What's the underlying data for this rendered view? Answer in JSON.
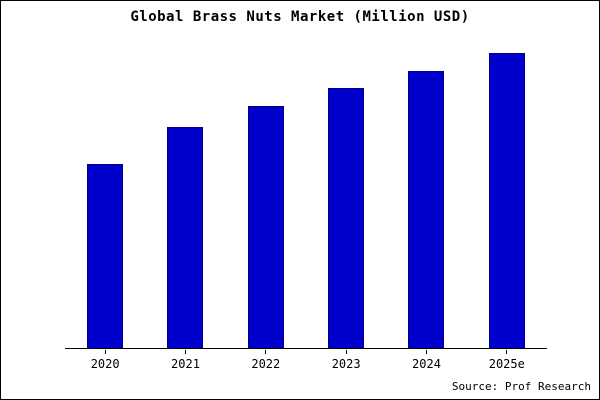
{
  "title": "Global Brass Nuts Market (Million USD)",
  "source": "Source: Prof Research",
  "chart_data": {
    "type": "bar",
    "title": "Global Brass Nuts Market (Million USD)",
    "categories": [
      "2020",
      "2021",
      "2022",
      "2023",
      "2024",
      "2025e"
    ],
    "values": [
      100,
      120,
      131,
      141,
      150,
      160
    ],
    "xlabel": "",
    "ylabel": "",
    "ylim": [
      0,
      160
    ],
    "grid": false,
    "legend": false,
    "bar_color": "#0000CD",
    "bar_border_color": "#00008B",
    "axis_color": "#000000",
    "background_color": "#ffffff"
  }
}
